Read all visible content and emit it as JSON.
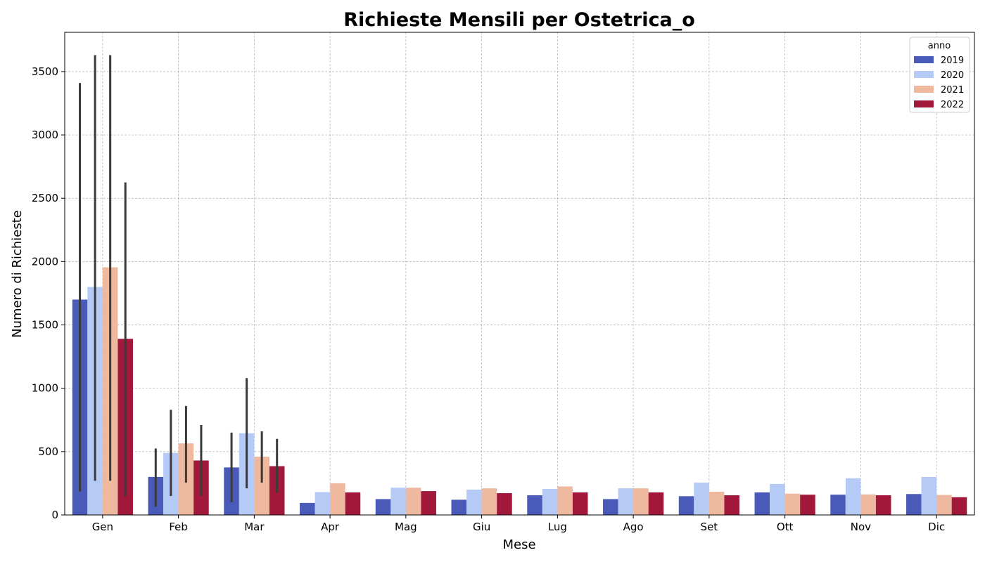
{
  "chart_data": {
    "type": "bar",
    "title": "Richieste Mensili per Ostetrica_o",
    "xlabel": "Mese",
    "ylabel": "Numero di Richieste",
    "categories": [
      "Gen",
      "Feb",
      "Mar",
      "Apr",
      "Mag",
      "Giu",
      "Lug",
      "Ago",
      "Set",
      "Ott",
      "Nov",
      "Dic"
    ],
    "ylim": [
      0,
      3810
    ],
    "yticks": [
      0,
      500,
      1000,
      1500,
      2000,
      2500,
      3000,
      3500
    ],
    "grid": true,
    "legend": {
      "title": "anno",
      "placement": "top-right"
    },
    "series": [
      {
        "name": "2019",
        "color": "#4a5ab8",
        "values": [
          1700,
          300,
          375,
          95,
          125,
          120,
          155,
          125,
          148,
          178,
          160,
          165
        ],
        "error_low": [
          185,
          65,
          100,
          null,
          null,
          null,
          null,
          null,
          null,
          null,
          null,
          null
        ],
        "error_high": [
          3410,
          525,
          650,
          null,
          null,
          null,
          null,
          null,
          null,
          null,
          null,
          null
        ]
      },
      {
        "name": "2020",
        "color": "#b5cbf5",
        "values": [
          1800,
          490,
          645,
          180,
          215,
          200,
          205,
          210,
          255,
          245,
          290,
          300
        ],
        "error_low": [
          270,
          150,
          210,
          null,
          null,
          null,
          null,
          null,
          null,
          null,
          null,
          null
        ],
        "error_high": [
          3630,
          830,
          1080,
          null,
          null,
          null,
          null,
          null,
          null,
          null,
          null,
          null
        ]
      },
      {
        "name": "2021",
        "color": "#efb9a0",
        "values": [
          1955,
          565,
          460,
          250,
          215,
          210,
          225,
          210,
          183,
          168,
          162,
          158
        ],
        "error_low": [
          270,
          255,
          255,
          null,
          null,
          null,
          null,
          null,
          null,
          null,
          null,
          null
        ],
        "error_high": [
          3630,
          860,
          660,
          null,
          null,
          null,
          null,
          null,
          null,
          null,
          null,
          null
        ]
      },
      {
        "name": "2022",
        "color": "#a2183a",
        "values": [
          1390,
          430,
          385,
          178,
          188,
          172,
          178,
          178,
          155,
          160,
          155,
          140
        ],
        "error_low": [
          145,
          150,
          175,
          null,
          null,
          null,
          null,
          null,
          null,
          null,
          null,
          null
        ],
        "error_high": [
          2625,
          710,
          600,
          null,
          null,
          null,
          null,
          null,
          null,
          null,
          null,
          null
        ]
      }
    ]
  }
}
